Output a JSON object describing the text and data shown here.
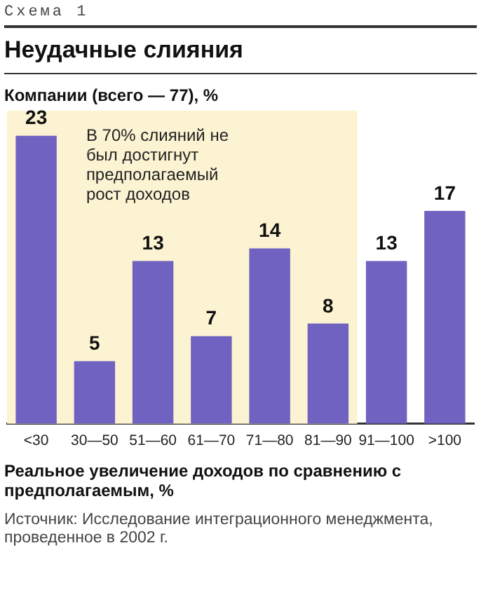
{
  "chart_data": {
    "type": "bar",
    "title": "Неудачные слияния",
    "subtitle": "Компании (всего — 77), %",
    "xlabel": "Реальное увеличение доходов по сравнению с предполагаемым, %",
    "categories": [
      "<30",
      "30—50",
      "51—60",
      "61—70",
      "71—80",
      "81—90",
      "91—100",
      ">100"
    ],
    "values": [
      23,
      5,
      13,
      7,
      14,
      8,
      13,
      17
    ],
    "color": "#6f62c0",
    "data_labels": true,
    "ylim": [
      0,
      25
    ],
    "tick_labels": "x",
    "grid": false,
    "legend": false,
    "bands": [
      {
        "axis": "x",
        "from": "<30",
        "to": "81—90",
        "label": "В 70% слияний не был достигнут предполагаемый рост доходов",
        "color": "#fcf3d2"
      }
    ],
    "annotations": [
      "Схема 1",
      "Источник: Исследование интеграционного менеджмента, проведенное в 2002 г."
    ]
  }
}
